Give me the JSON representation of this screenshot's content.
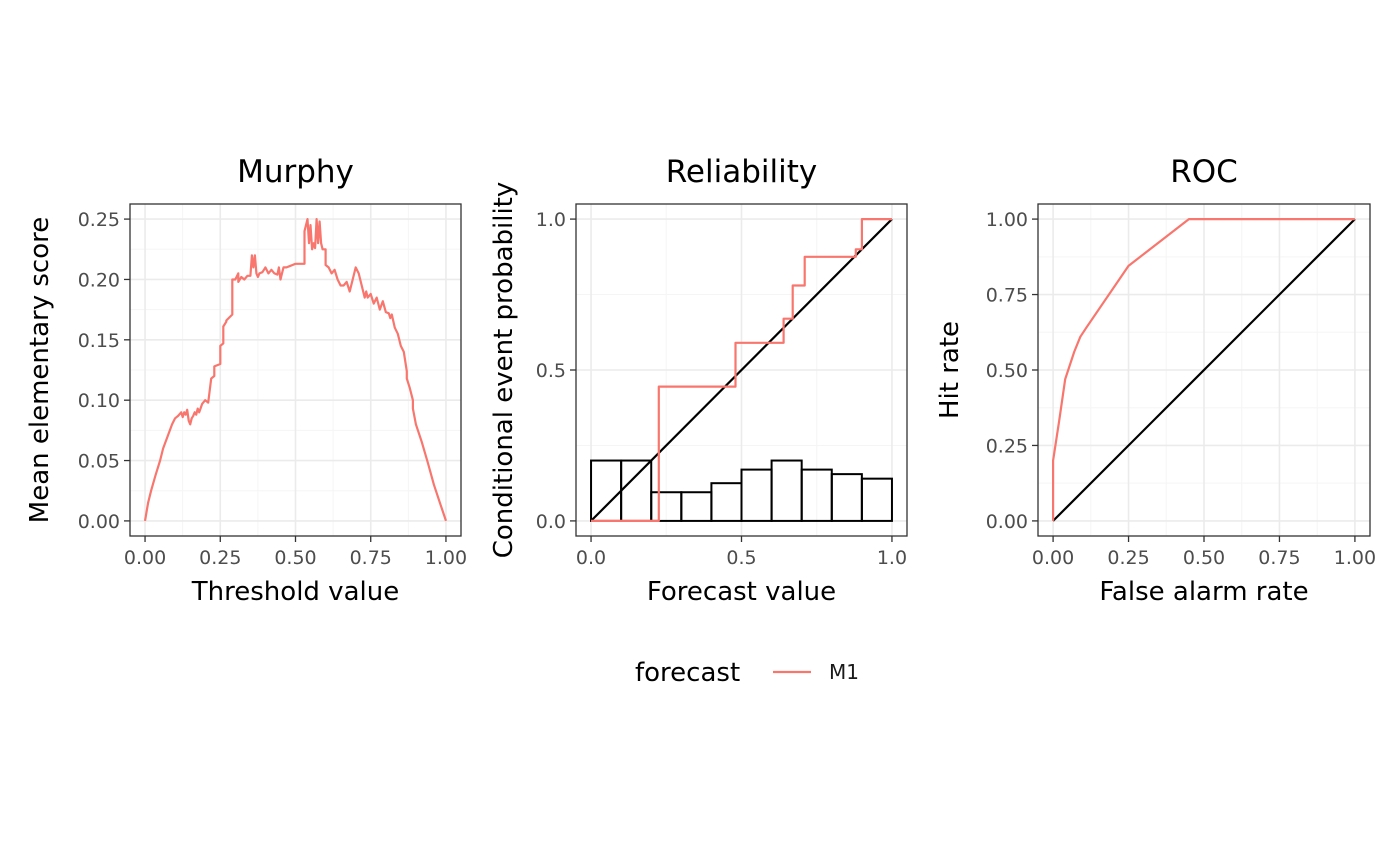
{
  "chart_data": [
    {
      "type": "line",
      "title": "Murphy",
      "xlabel": "Threshold value",
      "ylabel": "Mean elementary score",
      "xlim": [
        -0.05,
        1.05
      ],
      "ylim": [
        -0.0125,
        0.2625
      ],
      "x_ticks": [
        0,
        0.25,
        0.5,
        0.75,
        1
      ],
      "x_tick_labels": [
        "0.00",
        "0.25",
        "0.50",
        "0.75",
        "1.00"
      ],
      "y_ticks": [
        0,
        0.05,
        0.1,
        0.15,
        0.2,
        0.25
      ],
      "y_tick_labels": [
        "0.00",
        "0.05",
        "0.10",
        "0.15",
        "0.20",
        "0.25"
      ],
      "grid": true,
      "series": [
        {
          "name": "M1",
          "x": [
            0,
            0.01,
            0.02,
            0.035,
            0.05,
            0.06,
            0.075,
            0.09,
            0.1,
            0.11,
            0.12,
            0.125,
            0.13,
            0.135,
            0.14,
            0.145,
            0.15,
            0.155,
            0.16,
            0.165,
            0.17,
            0.175,
            0.18,
            0.19,
            0.2,
            0.21,
            0.22,
            0.23,
            0.23,
            0.25,
            0.25,
            0.26,
            0.26,
            0.27,
            0.27,
            0.29,
            0.29,
            0.3,
            0.31,
            0.31,
            0.32,
            0.33,
            0.34,
            0.35,
            0.355,
            0.36,
            0.365,
            0.37,
            0.375,
            0.38,
            0.39,
            0.4,
            0.41,
            0.42,
            0.43,
            0.44,
            0.445,
            0.45,
            0.455,
            0.46,
            0.47,
            0.48,
            0.49,
            0.5,
            0.53,
            0.53,
            0.54,
            0.545,
            0.55,
            0.555,
            0.56,
            0.565,
            0.57,
            0.575,
            0.58,
            0.585,
            0.59,
            0.6,
            0.6,
            0.61,
            0.62,
            0.63,
            0.64,
            0.65,
            0.66,
            0.67,
            0.68,
            0.69,
            0.7,
            0.71,
            0.72,
            0.73,
            0.735,
            0.74,
            0.75,
            0.76,
            0.77,
            0.78,
            0.79,
            0.8,
            0.81,
            0.815,
            0.82,
            0.83,
            0.84,
            0.85,
            0.86,
            0.87,
            0.87,
            0.88,
            0.89,
            0.89,
            0.9,
            0.92,
            0.94,
            0.96,
            0.98,
            1
          ],
          "y": [
            0,
            0.015,
            0.025,
            0.038,
            0.05,
            0.06,
            0.07,
            0.08,
            0.085,
            0.087,
            0.09,
            0.086,
            0.09,
            0.088,
            0.092,
            0.083,
            0.08,
            0.085,
            0.087,
            0.09,
            0.088,
            0.093,
            0.09,
            0.097,
            0.1,
            0.098,
            0.118,
            0.12,
            0.128,
            0.13,
            0.145,
            0.147,
            0.161,
            0.165,
            0.166,
            0.171,
            0.2,
            0.2,
            0.205,
            0.198,
            0.202,
            0.2,
            0.203,
            0.203,
            0.22,
            0.21,
            0.22,
            0.205,
            0.202,
            0.205,
            0.206,
            0.21,
            0.205,
            0.208,
            0.205,
            0.204,
            0.21,
            0.2,
            0.205,
            0.21,
            0.21,
            0.211,
            0.212,
            0.213,
            0.213,
            0.24,
            0.25,
            0.23,
            0.245,
            0.225,
            0.23,
            0.226,
            0.25,
            0.23,
            0.248,
            0.23,
            0.225,
            0.225,
            0.212,
            0.21,
            0.205,
            0.208,
            0.2,
            0.195,
            0.195,
            0.198,
            0.19,
            0.2,
            0.21,
            0.205,
            0.195,
            0.185,
            0.19,
            0.185,
            0.188,
            0.18,
            0.185,
            0.175,
            0.182,
            0.173,
            0.172,
            0.168,
            0.171,
            0.16,
            0.155,
            0.145,
            0.14,
            0.124,
            0.118,
            0.11,
            0.1,
            0.093,
            0.08,
            0.065,
            0.048,
            0.03,
            0.015,
            0
          ]
        }
      ]
    },
    {
      "type": "line",
      "title": "Reliability",
      "xlabel": "Forecast value",
      "ylabel": "Conditional event probability",
      "xlim": [
        -0.05,
        1.05
      ],
      "ylim": [
        -0.05,
        1.05
      ],
      "x_ticks": [
        0,
        0.5,
        1
      ],
      "x_tick_labels": [
        "0.0",
        "0.5",
        "1.0"
      ],
      "y_ticks": [
        0,
        0.5,
        1
      ],
      "y_tick_labels": [
        "0.0",
        "0.5",
        "1.0"
      ],
      "grid": true,
      "histogram": {
        "bin_edges": [
          0,
          0.1,
          0.2,
          0.3,
          0.4,
          0.5,
          0.6,
          0.7,
          0.8,
          0.9,
          1
        ],
        "heights": [
          0.2,
          0.2,
          0.095,
          0.095,
          0.125,
          0.17,
          0.2,
          0.17,
          0.155,
          0.14
        ]
      },
      "diagonal": [
        [
          0,
          0
        ],
        [
          1,
          1
        ]
      ],
      "series": [
        {
          "name": "M1",
          "x": [
            0,
            0.225,
            0.225,
            0.48,
            0.48,
            0.64,
            0.64,
            0.67,
            0.67,
            0.71,
            0.71,
            0.88,
            0.88,
            0.9,
            0.9,
            1
          ],
          "y": [
            0,
            0,
            0.445,
            0.445,
            0.59,
            0.59,
            0.67,
            0.67,
            0.78,
            0.78,
            0.875,
            0.875,
            0.9,
            0.9,
            1,
            1
          ]
        }
      ]
    },
    {
      "type": "line",
      "title": "ROC",
      "xlabel": "False alarm rate",
      "ylabel": "Hit rate",
      "xlim": [
        -0.05,
        1.05
      ],
      "ylim": [
        -0.05,
        1.05
      ],
      "x_ticks": [
        0,
        0.25,
        0.5,
        0.75,
        1
      ],
      "x_tick_labels": [
        "0.00",
        "0.25",
        "0.50",
        "0.75",
        "1.00"
      ],
      "y_ticks": [
        0,
        0.25,
        0.5,
        0.75,
        1
      ],
      "y_tick_labels": [
        "0.00",
        "0.25",
        "0.50",
        "0.75",
        "1.00"
      ],
      "grid": true,
      "diagonal": [
        [
          0,
          0
        ],
        [
          1,
          1
        ]
      ],
      "series": [
        {
          "name": "M1",
          "x": [
            0,
            0,
            0.02,
            0.04,
            0.07,
            0.09,
            0.11,
            0.25,
            0.45,
            1
          ],
          "y": [
            0,
            0.2,
            0.33,
            0.47,
            0.56,
            0.61,
            0.64,
            0.845,
            1,
            1
          ]
        }
      ]
    }
  ],
  "legend": {
    "title": "forecast",
    "items": [
      {
        "label": "M1",
        "color": "#F8766D"
      }
    ],
    "placement": "bottom"
  },
  "colors": {
    "series": "#F8766D",
    "reference": "#000000",
    "grid_major": "#ebebeb",
    "grid_minor": "#f5f5f5",
    "panel_border": "#333333",
    "tick_text": "#4d4d4d"
  }
}
